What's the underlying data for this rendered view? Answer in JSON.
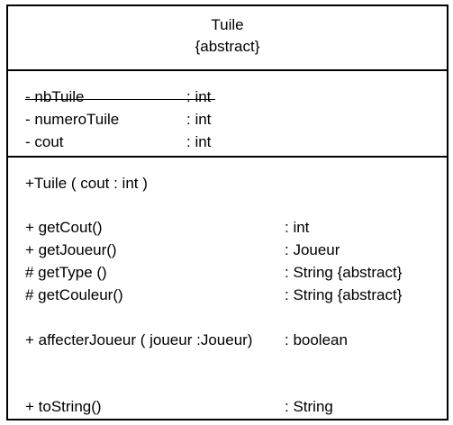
{
  "class": {
    "name": "Tuile",
    "stereotype": "{abstract}"
  },
  "attributes": [
    {
      "name": "- nbTuile",
      "type": ": int"
    },
    {
      "name": "- numeroTuile",
      "type": ": int"
    },
    {
      "name": "- cout",
      "type": ": int"
    }
  ],
  "operations": {
    "constructor": "+Tuile ( cout : int )",
    "methods": [
      {
        "name": "+ getCout()",
        "type": ": int"
      },
      {
        "name": "+ getJoueur()",
        "type": ": Joueur"
      },
      {
        "name": "# getType ()",
        "type": ": String {abstract}"
      },
      {
        "name": "# getCouleur()",
        "type": ": String {abstract}"
      },
      {
        "name": "+ affecterJoueur ( joueur :Joueur)",
        "type": ": boolean"
      },
      {
        "name": "+ toString()",
        "type": ": String"
      }
    ]
  }
}
